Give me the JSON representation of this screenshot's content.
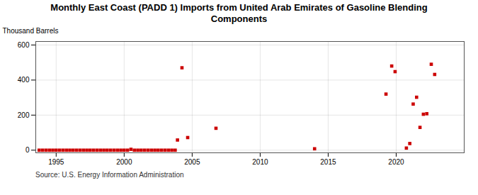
{
  "chart_data": {
    "type": "scatter",
    "title": "Monthly East Coast (PADD 1) Imports from United Arab Emirates of Gasoline Blending\nComponents",
    "ylabel": "Thousand Barrels",
    "source": "Source: U.S. Energy Information Administration",
    "x": [
      1993.75,
      1994.0,
      1994.25,
      1994.5,
      1994.75,
      1995.0,
      1995.25,
      1995.5,
      1995.75,
      1996.0,
      1996.25,
      1996.5,
      1996.75,
      1997.0,
      1997.25,
      1997.5,
      1997.75,
      1998.0,
      1998.25,
      1998.5,
      1998.75,
      1999.0,
      1999.25,
      1999.5,
      1999.75,
      2000.0,
      2000.25,
      2000.5,
      2000.75,
      2001.0,
      2001.25,
      2001.5,
      2001.75,
      2002.0,
      2002.25,
      2002.5,
      2002.75,
      2003.0,
      2003.25,
      2003.5,
      2003.75,
      2003.92,
      2004.25,
      2004.67,
      2006.75,
      2014.0,
      2019.25,
      2019.67,
      2019.92,
      2020.75,
      2021.0,
      2021.25,
      2021.5,
      2021.75,
      2022.0,
      2022.25,
      2022.58,
      2022.83
    ],
    "values": [
      0,
      0,
      0,
      0,
      0,
      0,
      0,
      0,
      0,
      0,
      0,
      0,
      0,
      0,
      0,
      0,
      0,
      0,
      0,
      0,
      0,
      0,
      0,
      0,
      0,
      0,
      0,
      5,
      0,
      0,
      0,
      0,
      0,
      0,
      0,
      0,
      0,
      0,
      0,
      0,
      0,
      58,
      470,
      72,
      125,
      8,
      320,
      480,
      448,
      12,
      38,
      263,
      302,
      130,
      205,
      208,
      490,
      432
    ],
    "color": "#cc0000",
    "marker": "square",
    "xlim": [
      1993.5,
      2025
    ],
    "ylim": [
      -15,
      620
    ],
    "xticks": [
      1995,
      2000,
      2005,
      2010,
      2015,
      2020
    ],
    "yticks": [
      0,
      200,
      400,
      600
    ],
    "grid": true
  }
}
